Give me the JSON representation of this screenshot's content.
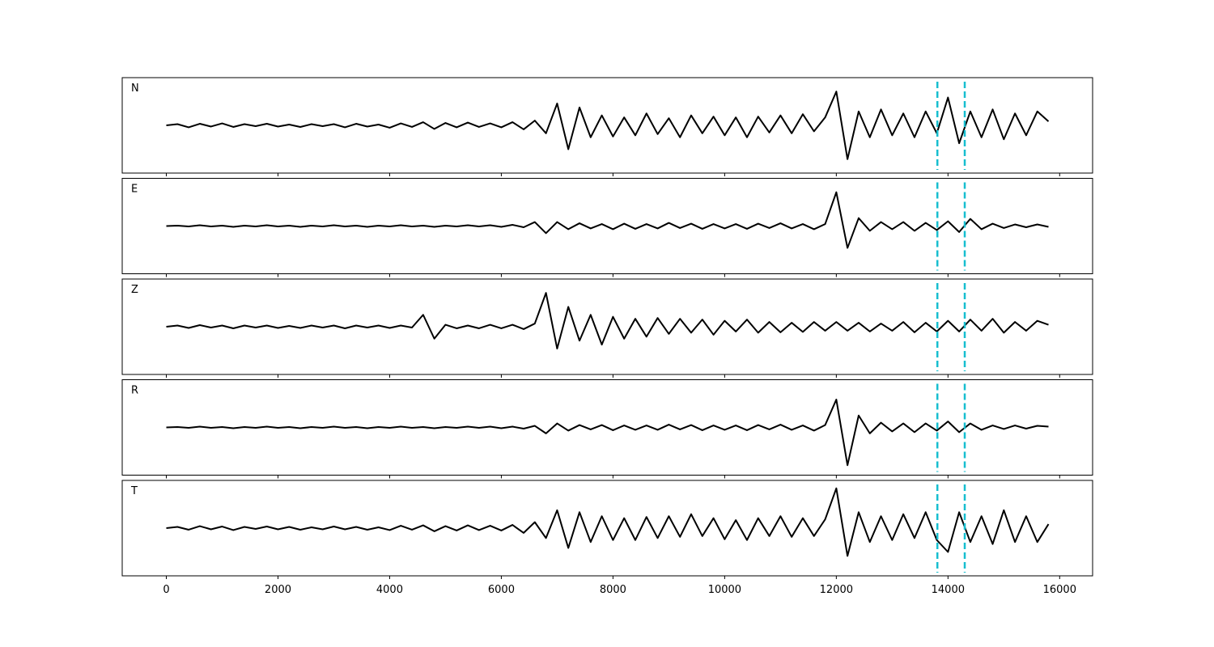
{
  "chart_data": {
    "type": "line",
    "x": [
      0,
      200,
      400,
      600,
      800,
      1000,
      1200,
      1400,
      1600,
      1800,
      2000,
      2200,
      2400,
      2600,
      2800,
      3000,
      3200,
      3400,
      3600,
      3800,
      4000,
      4200,
      4400,
      4600,
      4800,
      5000,
      5200,
      5400,
      5600,
      5800,
      6000,
      6200,
      6400,
      6600,
      6800,
      7000,
      7200,
      7400,
      7600,
      7800,
      8000,
      8200,
      8400,
      8600,
      8800,
      9000,
      9200,
      9400,
      9600,
      9800,
      10000,
      10200,
      10400,
      10600,
      10800,
      11000,
      11200,
      11400,
      11600,
      11800,
      12000,
      12200,
      12400,
      12600,
      12800,
      13000,
      13200,
      13400,
      13600,
      13800,
      14000,
      14200,
      14400,
      14600,
      14800,
      15000,
      15200,
      15400,
      15600,
      15800
    ],
    "xlim": [
      -790,
      16590
    ],
    "xticks": [
      0,
      2000,
      4000,
      6000,
      8000,
      10000,
      12000,
      14000,
      16000
    ],
    "ylim": [
      -1.2,
      1.2
    ],
    "vlines": [
      13810,
      14300
    ],
    "vline_color": "#17becf",
    "series": [
      {
        "name": "N",
        "color": "#000000",
        "values": [
          0,
          0.03,
          -0.05,
          0.04,
          -0.03,
          0.05,
          -0.04,
          0.03,
          -0.02,
          0.04,
          -0.03,
          0.02,
          -0.04,
          0.03,
          -0.02,
          0.03,
          -0.05,
          0.04,
          -0.03,
          0.02,
          -0.06,
          0.05,
          -0.04,
          0.08,
          -0.09,
          0.06,
          -0.05,
          0.07,
          -0.04,
          0.05,
          -0.05,
          0.08,
          -0.1,
          0.12,
          -0.2,
          0.55,
          -0.6,
          0.45,
          -0.3,
          0.25,
          -0.28,
          0.2,
          -0.25,
          0.3,
          -0.22,
          0.18,
          -0.3,
          0.25,
          -0.2,
          0.22,
          -0.25,
          0.2,
          -0.3,
          0.22,
          -0.18,
          0.25,
          -0.2,
          0.28,
          -0.15,
          0.2,
          0.85,
          -0.85,
          0.35,
          -0.3,
          0.4,
          -0.25,
          0.3,
          -0.3,
          0.35,
          -0.2,
          0.7,
          -0.45,
          0.35,
          -0.3,
          0.4,
          -0.35,
          0.3,
          -0.25,
          0.35,
          0.1
        ]
      },
      {
        "name": "E",
        "color": "#000000",
        "values": [
          0,
          0.01,
          -0.01,
          0.02,
          -0.01,
          0.01,
          -0.02,
          0.01,
          -0.01,
          0.02,
          -0.01,
          0.01,
          -0.02,
          0.01,
          -0.01,
          0.02,
          -0.01,
          0.01,
          -0.02,
          0.01,
          -0.01,
          0.02,
          -0.01,
          0.01,
          -0.02,
          0.01,
          -0.01,
          0.02,
          -0.01,
          0.02,
          -0.02,
          0.03,
          -0.03,
          0.1,
          -0.18,
          0.1,
          -0.08,
          0.07,
          -0.06,
          0.05,
          -0.08,
          0.06,
          -0.07,
          0.05,
          -0.06,
          0.08,
          -0.05,
          0.06,
          -0.07,
          0.05,
          -0.06,
          0.05,
          -0.07,
          0.06,
          -0.05,
          0.07,
          -0.06,
          0.05,
          -0.08,
          0.05,
          0.85,
          -0.55,
          0.2,
          -0.12,
          0.1,
          -0.08,
          0.1,
          -0.12,
          0.08,
          -0.1,
          0.12,
          -0.15,
          0.18,
          -0.08,
          0.06,
          -0.05,
          0.04,
          -0.03,
          0.04,
          -0.02
        ]
      },
      {
        "name": "Z",
        "color": "#000000",
        "values": [
          0,
          0.03,
          -0.03,
          0.04,
          -0.02,
          0.03,
          -0.04,
          0.03,
          -0.02,
          0.03,
          -0.03,
          0.02,
          -0.03,
          0.03,
          -0.02,
          0.03,
          -0.04,
          0.03,
          -0.02,
          0.03,
          -0.03,
          0.03,
          -0.02,
          0.3,
          -0.3,
          0.05,
          -0.04,
          0.03,
          -0.04,
          0.05,
          -0.04,
          0.05,
          -0.06,
          0.08,
          0.85,
          -0.55,
          0.5,
          -0.35,
          0.3,
          -0.45,
          0.25,
          -0.3,
          0.2,
          -0.25,
          0.22,
          -0.18,
          0.2,
          -0.15,
          0.18,
          -0.2,
          0.15,
          -0.12,
          0.18,
          -0.15,
          0.12,
          -0.14,
          0.1,
          -0.13,
          0.12,
          -0.1,
          0.12,
          -0.1,
          0.1,
          -0.12,
          0.08,
          -0.1,
          0.12,
          -0.14,
          0.1,
          -0.12,
          0.15,
          -0.12,
          0.18,
          -0.1,
          0.2,
          -0.15,
          0.12,
          -0.1,
          0.15,
          0.05
        ]
      },
      {
        "name": "R",
        "color": "#000000",
        "values": [
          0,
          0.01,
          -0.01,
          0.02,
          -0.01,
          0.01,
          -0.02,
          0.01,
          -0.01,
          0.02,
          -0.01,
          0.01,
          -0.02,
          0.01,
          -0.01,
          0.02,
          -0.01,
          0.01,
          -0.02,
          0.01,
          -0.01,
          0.02,
          -0.01,
          0.01,
          -0.02,
          0.01,
          -0.01,
          0.02,
          -0.01,
          0.02,
          -0.02,
          0.02,
          -0.03,
          0.04,
          -0.15,
          0.1,
          -0.08,
          0.06,
          -0.05,
          0.06,
          -0.07,
          0.05,
          -0.06,
          0.05,
          -0.06,
          0.07,
          -0.05,
          0.06,
          -0.07,
          0.05,
          -0.06,
          0.05,
          -0.07,
          0.06,
          -0.05,
          0.07,
          -0.06,
          0.05,
          -0.08,
          0.06,
          0.7,
          -0.95,
          0.3,
          -0.15,
          0.12,
          -0.1,
          0.1,
          -0.12,
          0.1,
          -0.08,
          0.15,
          -0.12,
          0.1,
          -0.06,
          0.05,
          -0.04,
          0.05,
          -0.03,
          0.04,
          0.02
        ]
      },
      {
        "name": "T",
        "color": "#000000",
        "values": [
          0,
          0.03,
          -0.04,
          0.05,
          -0.03,
          0.04,
          -0.05,
          0.03,
          -0.02,
          0.04,
          -0.03,
          0.03,
          -0.04,
          0.02,
          -0.03,
          0.04,
          -0.03,
          0.03,
          -0.04,
          0.02,
          -0.05,
          0.06,
          -0.04,
          0.07,
          -0.08,
          0.05,
          -0.06,
          0.07,
          -0.05,
          0.06,
          -0.06,
          0.08,
          -0.12,
          0.15,
          -0.25,
          0.45,
          -0.5,
          0.4,
          -0.35,
          0.3,
          -0.3,
          0.25,
          -0.3,
          0.28,
          -0.25,
          0.3,
          -0.22,
          0.35,
          -0.2,
          0.25,
          -0.28,
          0.2,
          -0.3,
          0.25,
          -0.2,
          0.3,
          -0.22,
          0.25,
          -0.2,
          0.22,
          1.0,
          -0.7,
          0.4,
          -0.35,
          0.3,
          -0.3,
          0.35,
          -0.25,
          0.4,
          -0.3,
          -0.6,
          0.4,
          -0.35,
          0.3,
          -0.4,
          0.45,
          -0.35,
          0.3,
          -0.35,
          0.1
        ]
      }
    ]
  }
}
